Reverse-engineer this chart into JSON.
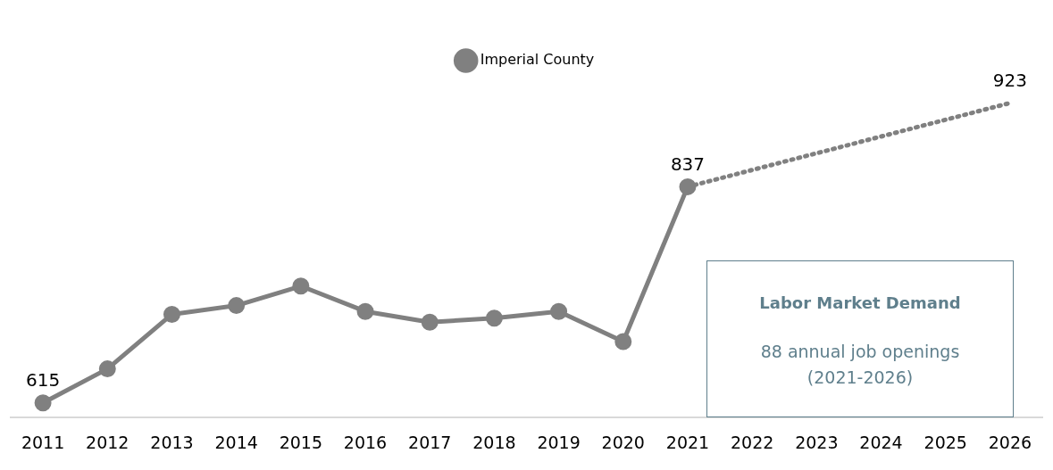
{
  "chart_data": {
    "type": "line",
    "categories": [
      "2011",
      "2012",
      "2013",
      "2014",
      "2015",
      "2016",
      "2017",
      "2018",
      "2019",
      "2020",
      "2021",
      "2022",
      "2023",
      "2024",
      "2025",
      "2026"
    ],
    "series": [
      {
        "name": "Imperial County",
        "color": "#808080",
        "marker": "circle",
        "values": [
          615,
          650,
          706,
          715,
          735,
          709,
          698,
          702,
          709,
          678,
          837,
          null,
          null,
          null,
          null,
          null
        ],
        "value_labels": [
          "615",
          null,
          null,
          null,
          null,
          null,
          null,
          null,
          null,
          null,
          "837",
          null,
          null,
          null,
          null,
          null
        ]
      },
      {
        "color": "#808080",
        "line_style": "dotted",
        "values": [
          null,
          null,
          null,
          null,
          null,
          null,
          null,
          null,
          null,
          null,
          837,
          null,
          null,
          null,
          null,
          923
        ],
        "value_labels": [
          null,
          null,
          null,
          null,
          null,
          null,
          null,
          null,
          null,
          null,
          null,
          null,
          null,
          null,
          null,
          "923"
        ]
      }
    ],
    "line_style": "solid",
    "grid": false,
    "legend": "top",
    "annotations": [
      "Labor Market Demand",
      "88 annual job openings (2021-2026)"
    ]
  }
}
